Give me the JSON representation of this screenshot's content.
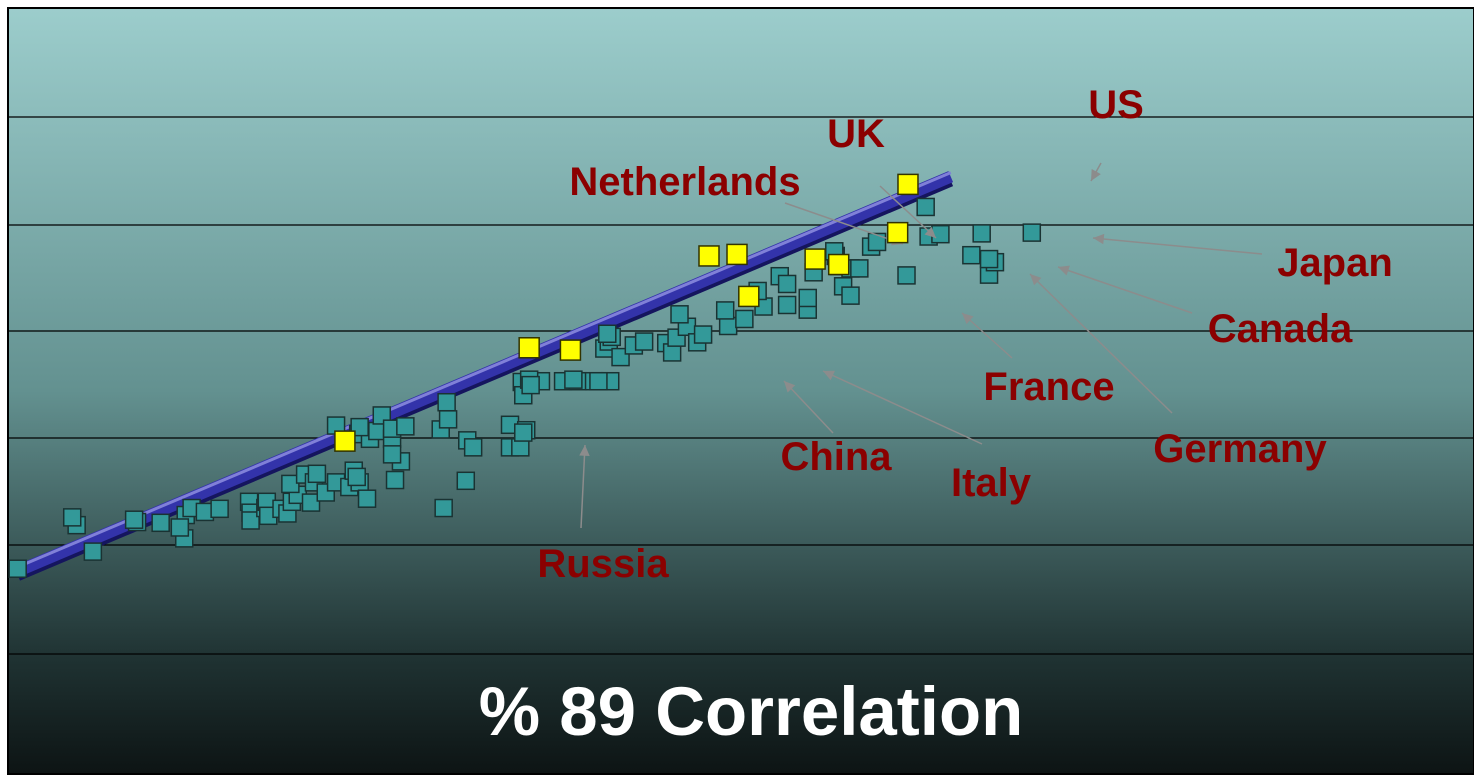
{
  "chart_data": {
    "type": "scatter",
    "title": "% 89 Correlation",
    "xlabel": "",
    "ylabel": "",
    "xlim": [
      0,
      100
    ],
    "ylim": [
      0,
      100
    ],
    "grid": true,
    "colors": {
      "background_top": "#9ccdcc",
      "background_bottom": "#0d1414",
      "point": "#339999",
      "highlight": "#ffff00",
      "trend_line": "#3333aa",
      "label": "#8B0000",
      "caption": "#ffffff",
      "arrow": "#8c8c8c"
    },
    "trend_line": {
      "x": [
        1.2,
        64.5
      ],
      "y": [
        26.6,
        77.3
      ]
    },
    "points": [
      [
        1.2,
        26.9
      ],
      [
        5.2,
        32.5
      ],
      [
        4.9,
        33.5
      ],
      [
        6.3,
        29.1
      ],
      [
        9.3,
        32.9
      ],
      [
        9.1,
        33.2
      ],
      [
        10.9,
        32.8
      ],
      [
        12.5,
        30.8
      ],
      [
        12.6,
        33.8
      ],
      [
        12.2,
        32.2
      ],
      [
        13.0,
        34.7
      ],
      [
        13.9,
        34.2
      ],
      [
        14.9,
        34.6
      ],
      [
        16.9,
        35.5
      ],
      [
        17.0,
        34.1
      ],
      [
        17.0,
        33.1
      ],
      [
        18.0,
        34.7
      ],
      [
        18.1,
        35.5
      ],
      [
        18.2,
        33.7
      ],
      [
        19.1,
        34.6
      ],
      [
        19.5,
        34.0
      ],
      [
        19.8,
        35.5
      ],
      [
        20.2,
        36.4
      ],
      [
        19.7,
        37.8
      ],
      [
        20.7,
        39.0
      ],
      [
        21.3,
        38.0
      ],
      [
        21.5,
        39.1
      ],
      [
        21.1,
        35.4
      ],
      [
        22.1,
        36.7
      ],
      [
        22.8,
        38.0
      ],
      [
        23.7,
        37.4
      ],
      [
        24.0,
        39.5
      ],
      [
        24.4,
        38.0
      ],
      [
        24.9,
        35.9
      ],
      [
        24.2,
        38.7
      ],
      [
        22.8,
        45.3
      ],
      [
        24.3,
        44.2
      ],
      [
        25.1,
        43.6
      ],
      [
        24.4,
        45.1
      ],
      [
        25.6,
        44.6
      ],
      [
        26.6,
        43.6
      ],
      [
        25.9,
        46.6
      ],
      [
        26.6,
        44.9
      ],
      [
        27.5,
        45.2
      ],
      [
        26.8,
        38.3
      ],
      [
        27.2,
        40.7
      ],
      [
        26.6,
        41.6
      ],
      [
        30.3,
        48.3
      ],
      [
        29.9,
        44.8
      ],
      [
        30.4,
        46.1
      ],
      [
        30.1,
        34.7
      ],
      [
        31.7,
        43.4
      ],
      [
        32.1,
        42.5
      ],
      [
        31.6,
        38.2
      ],
      [
        34.6,
        42.5
      ],
      [
        35.3,
        42.5
      ],
      [
        34.6,
        45.4
      ],
      [
        35.7,
        44.7
      ],
      [
        35.5,
        44.4
      ],
      [
        35.4,
        50.9
      ],
      [
        35.5,
        49.2
      ],
      [
        36.7,
        51.0
      ],
      [
        35.9,
        51.2
      ],
      [
        36.0,
        50.5
      ],
      [
        38.2,
        51.0
      ],
      [
        39.2,
        51.0
      ],
      [
        40.3,
        51.0
      ],
      [
        41.4,
        51.0
      ],
      [
        38.9,
        51.2
      ],
      [
        40.6,
        51.0
      ],
      [
        41.0,
        55.2
      ],
      [
        41.3,
        56.1
      ],
      [
        41.5,
        56.7
      ],
      [
        41.2,
        57.1
      ],
      [
        42.1,
        54.1
      ],
      [
        43.0,
        55.6
      ],
      [
        43.7,
        56.1
      ],
      [
        45.2,
        55.9
      ],
      [
        45.6,
        54.7
      ],
      [
        45.9,
        56.6
      ],
      [
        46.6,
        58.0
      ],
      [
        47.3,
        56.0
      ],
      [
        47.7,
        57.0
      ],
      [
        46.1,
        59.6
      ],
      [
        49.4,
        58.1
      ],
      [
        49.2,
        60.1
      ],
      [
        50.5,
        59.0
      ],
      [
        51.8,
        60.6
      ],
      [
        51.4,
        62.6
      ],
      [
        52.9,
        64.5
      ],
      [
        53.4,
        60.8
      ],
      [
        53.4,
        63.5
      ],
      [
        54.8,
        60.2
      ],
      [
        54.8,
        61.7
      ],
      [
        55.2,
        65.0
      ],
      [
        56.7,
        67.1
      ],
      [
        56.6,
        67.7
      ],
      [
        57.2,
        63.2
      ],
      [
        57.7,
        62.0
      ],
      [
        56.9,
        65.8
      ],
      [
        57.7,
        65.5
      ],
      [
        58.3,
        65.5
      ],
      [
        59.1,
        68.3
      ],
      [
        59.5,
        68.9
      ],
      [
        61.5,
        64.6
      ],
      [
        63.0,
        69.6
      ],
      [
        63.8,
        69.9
      ],
      [
        62.8,
        73.4
      ],
      [
        66.6,
        70.0
      ],
      [
        67.1,
        64.7
      ],
      [
        65.9,
        67.2
      ],
      [
        67.5,
        66.3
      ],
      [
        67.1,
        66.7
      ],
      [
        70.0,
        70.1
      ]
    ],
    "highlighted": [
      {
        "label": "US",
        "x": 61.6,
        "y": 76.3
      },
      {
        "label": "UK",
        "x": 50.0,
        "y": 67.3
      },
      {
        "label": "Netherlands",
        "x": 48.1,
        "y": 67.1
      },
      {
        "label": "Japan",
        "x": 60.9,
        "y": 70.1
      },
      {
        "label": "Canada",
        "x": 56.9,
        "y": 66.0
      },
      {
        "label": "Germany",
        "x": 55.3,
        "y": 66.7
      },
      {
        "label": "France",
        "x": 50.8,
        "y": 61.9
      },
      {
        "label": "Italy",
        "x": 38.7,
        "y": 55.0
      },
      {
        "label": "China",
        "x": 35.9,
        "y": 55.3
      },
      {
        "label": "Russia",
        "x": 23.4,
        "y": 43.3
      }
    ]
  }
}
